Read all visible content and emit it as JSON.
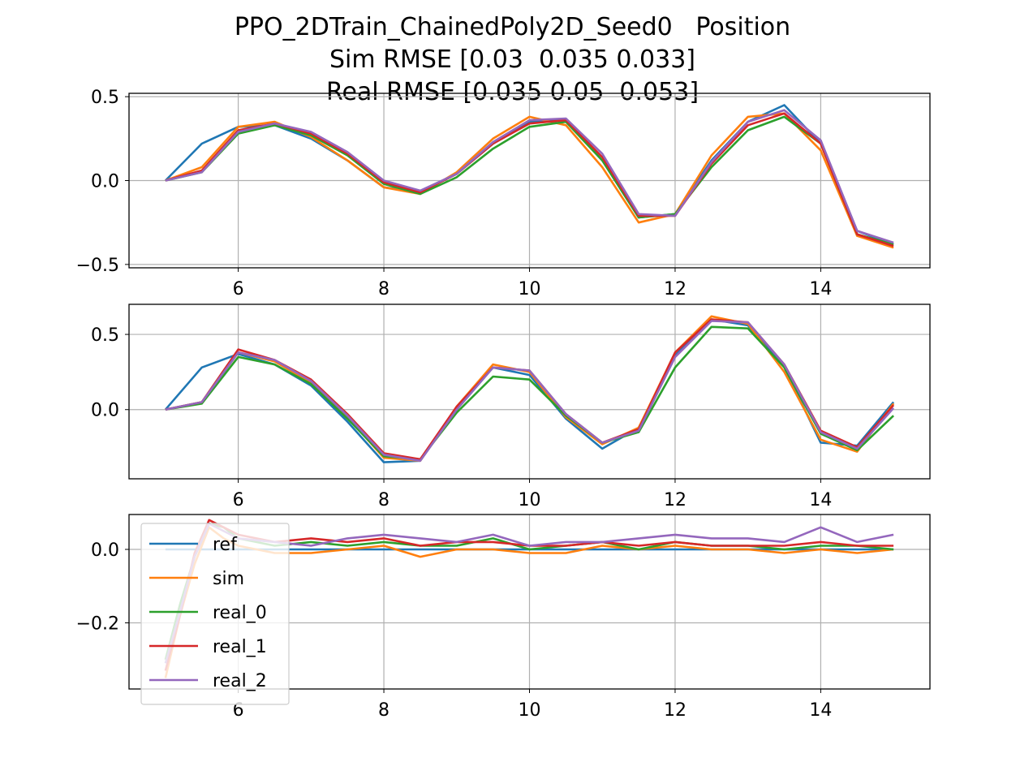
{
  "figure": {
    "title_lines": [
      "PPO_2DTrain_ChainedPoly2D_Seed0   Position",
      "Sim RMSE [0.03  0.035 0.033]",
      "Real RMSE [0.035 0.05  0.053]"
    ]
  },
  "colors": {
    "ref": "#1f77b4",
    "sim": "#ff7f0e",
    "real_0": "#2ca02c",
    "real_1": "#d62728",
    "real_2": "#9467bd",
    "grid": "#b0b0b0"
  },
  "chart_data": [
    {
      "type": "line",
      "xlim": [
        4.5,
        15.5
      ],
      "ylim": [
        -0.52,
        0.52
      ],
      "xticks": [
        6,
        8,
        10,
        12,
        14
      ],
      "xtick_labels": [
        "6",
        "8",
        "10",
        "12",
        "14"
      ],
      "yticks": [
        -0.5,
        0.0,
        0.5
      ],
      "ytick_labels": [
        "−0.5",
        "0.0",
        "0.5"
      ],
      "grid": true,
      "x": [
        5.0,
        5.5,
        6.0,
        6.5,
        7.0,
        7.5,
        8.0,
        8.5,
        9.0,
        9.5,
        10.0,
        10.5,
        11.0,
        11.5,
        12.0,
        12.5,
        13.0,
        13.5,
        14.0,
        14.5,
        15.0
      ],
      "series": [
        {
          "name": "ref",
          "values": [
            0.0,
            0.22,
            0.32,
            0.33,
            0.25,
            0.12,
            -0.04,
            -0.07,
            0.04,
            0.22,
            0.35,
            0.36,
            0.12,
            -0.22,
            -0.2,
            0.12,
            0.35,
            0.45,
            0.22,
            -0.3,
            -0.38
          ]
        },
        {
          "name": "sim",
          "values": [
            0.0,
            0.08,
            0.32,
            0.35,
            0.26,
            0.12,
            -0.04,
            -0.08,
            0.05,
            0.25,
            0.38,
            0.33,
            0.08,
            -0.25,
            -0.2,
            0.15,
            0.38,
            0.4,
            0.18,
            -0.33,
            -0.4
          ]
        },
        {
          "name": "real_0",
          "values": [
            0.0,
            0.05,
            0.28,
            0.33,
            0.27,
            0.15,
            -0.02,
            -0.08,
            0.02,
            0.19,
            0.32,
            0.35,
            0.12,
            -0.22,
            -0.2,
            0.08,
            0.3,
            0.38,
            0.22,
            -0.32,
            -0.38
          ]
        },
        {
          "name": "real_1",
          "values": [
            0.0,
            0.06,
            0.3,
            0.34,
            0.28,
            0.16,
            -0.01,
            -0.07,
            0.04,
            0.22,
            0.34,
            0.36,
            0.14,
            -0.21,
            -0.21,
            0.1,
            0.33,
            0.4,
            0.22,
            -0.32,
            -0.39
          ]
        },
        {
          "name": "real_2",
          "values": [
            0.0,
            0.05,
            0.29,
            0.34,
            0.29,
            0.17,
            0.0,
            -0.06,
            0.04,
            0.23,
            0.36,
            0.37,
            0.16,
            -0.2,
            -0.21,
            0.11,
            0.35,
            0.42,
            0.24,
            -0.3,
            -0.37
          ]
        }
      ]
    },
    {
      "type": "line",
      "xlim": [
        4.5,
        15.5
      ],
      "ylim": [
        -0.46,
        0.7
      ],
      "xticks": [
        6,
        8,
        10,
        12,
        14
      ],
      "xtick_labels": [
        "6",
        "8",
        "10",
        "12",
        "14"
      ],
      "yticks": [
        0.0,
        0.5
      ],
      "ytick_labels": [
        "0.0",
        "0.5"
      ],
      "grid": true,
      "x": [
        5.0,
        5.5,
        6.0,
        6.5,
        7.0,
        7.5,
        8.0,
        8.5,
        9.0,
        9.5,
        10.0,
        10.5,
        11.0,
        11.5,
        12.0,
        12.5,
        13.0,
        13.5,
        14.0,
        14.5,
        15.0
      ],
      "series": [
        {
          "name": "ref",
          "values": [
            0.0,
            0.28,
            0.37,
            0.3,
            0.16,
            -0.08,
            -0.35,
            -0.34,
            0.0,
            0.28,
            0.23,
            -0.06,
            -0.26,
            -0.12,
            0.36,
            0.6,
            0.56,
            0.28,
            -0.22,
            -0.24,
            0.05
          ]
        },
        {
          "name": "sim",
          "values": [
            0.0,
            0.05,
            0.38,
            0.32,
            0.18,
            -0.05,
            -0.32,
            -0.34,
            0.02,
            0.3,
            0.25,
            -0.05,
            -0.23,
            -0.12,
            0.38,
            0.62,
            0.57,
            0.25,
            -0.2,
            -0.28,
            0.04
          ]
        },
        {
          "name": "real_0",
          "values": [
            0.0,
            0.04,
            0.35,
            0.3,
            0.17,
            -0.06,
            -0.31,
            -0.33,
            -0.02,
            0.22,
            0.2,
            -0.04,
            -0.22,
            -0.15,
            0.28,
            0.55,
            0.54,
            0.28,
            -0.16,
            -0.27,
            -0.04
          ]
        },
        {
          "name": "real_1",
          "values": [
            0.0,
            0.05,
            0.4,
            0.33,
            0.2,
            -0.03,
            -0.29,
            -0.33,
            0.02,
            0.28,
            0.26,
            -0.03,
            -0.22,
            -0.13,
            0.38,
            0.6,
            0.58,
            0.3,
            -0.14,
            -0.25,
            0.03
          ]
        },
        {
          "name": "real_2",
          "values": [
            0.0,
            0.05,
            0.38,
            0.33,
            0.19,
            -0.04,
            -0.3,
            -0.34,
            0.0,
            0.28,
            0.26,
            -0.03,
            -0.22,
            -0.14,
            0.35,
            0.59,
            0.58,
            0.3,
            -0.15,
            -0.26,
            0.01
          ]
        }
      ]
    },
    {
      "type": "line",
      "xlim": [
        4.5,
        15.5
      ],
      "ylim": [
        -0.38,
        0.095
      ],
      "xticks": [
        6,
        8,
        10,
        12,
        14
      ],
      "xtick_labels": [
        "6",
        "8",
        "10",
        "12",
        "14"
      ],
      "yticks": [
        -0.2,
        0.0
      ],
      "ytick_labels": [
        "−0.2",
        "0.0"
      ],
      "grid": true,
      "legend_position": "upper-left",
      "x": [
        5.0,
        5.2,
        5.4,
        5.6,
        5.8,
        6.0,
        6.5,
        7.0,
        7.5,
        8.0,
        8.5,
        9.0,
        9.5,
        10.0,
        10.5,
        11.0,
        11.5,
        12.0,
        12.5,
        13.0,
        13.5,
        14.0,
        14.5,
        15.0
      ],
      "series": [
        {
          "name": "ref",
          "values": [
            0.0,
            0.0,
            0.0,
            0.0,
            0.0,
            0.0,
            0.0,
            0.0,
            0.0,
            0.0,
            0.0,
            0.0,
            0.0,
            0.0,
            0.0,
            0.0,
            0.0,
            0.0,
            0.0,
            0.0,
            0.0,
            0.0,
            0.0,
            0.0
          ]
        },
        {
          "name": "sim",
          "values": [
            -0.35,
            -0.18,
            -0.04,
            0.06,
            0.03,
            0.01,
            -0.01,
            -0.01,
            0.0,
            0.01,
            -0.02,
            0.0,
            0.0,
            -0.01,
            -0.01,
            0.01,
            0.0,
            0.01,
            0.0,
            0.0,
            -0.01,
            0.0,
            -0.01,
            0.0
          ]
        },
        {
          "name": "real_0",
          "values": [
            -0.3,
            -0.15,
            -0.02,
            0.07,
            0.06,
            0.03,
            0.01,
            0.02,
            0.01,
            0.02,
            0.01,
            0.01,
            0.03,
            0.0,
            0.01,
            0.02,
            0.0,
            0.02,
            0.01,
            0.01,
            0.0,
            0.01,
            0.01,
            0.0
          ]
        },
        {
          "name": "real_1",
          "values": [
            -0.33,
            -0.18,
            -0.01,
            0.08,
            0.06,
            0.04,
            0.02,
            0.03,
            0.02,
            0.03,
            0.01,
            0.02,
            0.02,
            0.01,
            0.01,
            0.02,
            0.01,
            0.02,
            0.01,
            0.01,
            0.01,
            0.02,
            0.01,
            0.01
          ]
        },
        {
          "name": "real_2",
          "values": [
            -0.31,
            -0.17,
            -0.02,
            0.07,
            0.05,
            0.03,
            0.02,
            0.01,
            0.03,
            0.04,
            0.03,
            0.02,
            0.04,
            0.01,
            0.02,
            0.02,
            0.03,
            0.04,
            0.03,
            0.03,
            0.02,
            0.06,
            0.02,
            0.04
          ]
        }
      ]
    }
  ]
}
